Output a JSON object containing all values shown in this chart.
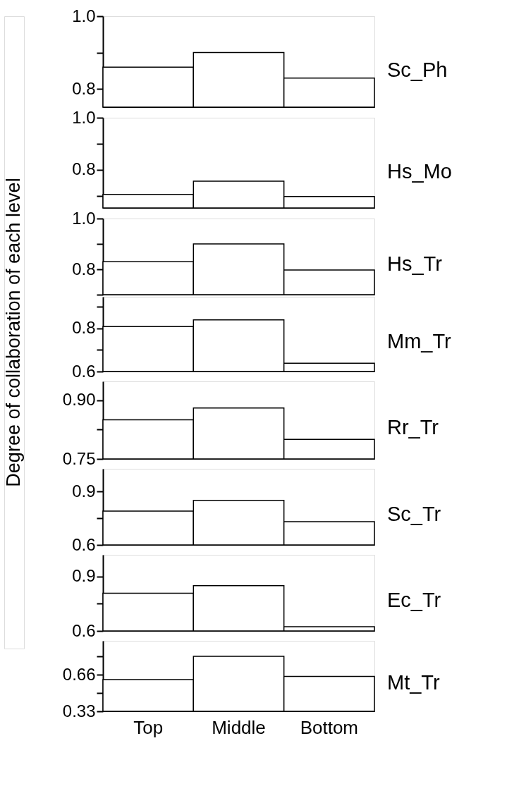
{
  "chart_data": [
    {
      "type": "bar",
      "categories": [
        null,
        null,
        null
      ],
      "series": [
        {
          "name": "Sc_Ph",
          "color": "#ffffff",
          "values": [
            0.86,
            0.9,
            0.83
          ]
        }
      ],
      "ylim": [
        0.75,
        1.0
      ],
      "yticks": [
        0.8,
        {
          "value": 0.9,
          "label": null
        },
        {
          "value": 1.0,
          "label": "1.0"
        }
      ],
      "tick_labels": "y",
      "grid": false
    },
    {
      "type": "bar",
      "categories": [
        null,
        null,
        null
      ],
      "series": [
        {
          "name": "Hs_Mo",
          "color": "#ffffff",
          "values": [
            0.706,
            0.757,
            0.698
          ]
        }
      ],
      "ylim": [
        0.654,
        1.0
      ],
      "yticks": [
        {
          "value": 0.7,
          "label": null
        },
        0.8,
        {
          "value": 0.9,
          "label": null
        },
        {
          "value": 1.0,
          "label": "1.0"
        }
      ],
      "tick_labels": "y",
      "grid": false
    },
    {
      "type": "bar",
      "categories": [
        null,
        null,
        null
      ],
      "series": [
        {
          "name": "Hs_Tr",
          "color": "#ffffff",
          "values": [
            0.83,
            0.9,
            0.797
          ]
        }
      ],
      "ylim": [
        0.7,
        1.0
      ],
      "yticks": [
        {
          "value": 0.7,
          "label": null
        },
        0.8,
        {
          "value": 0.9,
          "label": null
        },
        {
          "value": 1.0,
          "label": "1.0"
        }
      ],
      "tick_labels": "y",
      "grid": false
    },
    {
      "type": "bar",
      "ylabel": "Degree of collaboration of each level",
      "categories": [
        null,
        null,
        null
      ],
      "series": [
        {
          "name": "Mm_Tr",
          "color": "#ffffff",
          "values": [
            0.808,
            0.839,
            0.638
          ]
        }
      ],
      "ylim": [
        0.6,
        0.946
      ],
      "yticks": [
        0.6,
        {
          "value": 0.7,
          "label": null
        },
        0.8,
        {
          "value": 0.9,
          "label": null
        }
      ],
      "tick_labels": "y",
      "grid": false
    },
    {
      "type": "bar",
      "categories": [
        null,
        null,
        null
      ],
      "series": [
        {
          "name": "Rr_Tr",
          "color": "#ffffff",
          "values": [
            0.85,
            0.88,
            0.8
          ]
        }
      ],
      "ylim": [
        0.75,
        0.948
      ],
      "yticks": [
        {
          "value": 0.75,
          "label": "0.75"
        },
        {
          "value": 0.825,
          "label": null
        },
        {
          "value": 0.9,
          "label": "0.90"
        }
      ],
      "tick_labels": "y",
      "grid": false
    },
    {
      "type": "bar",
      "categories": [
        null,
        null,
        null
      ],
      "series": [
        {
          "name": "Sc_Tr",
          "color": "#ffffff",
          "values": [
            0.79,
            0.85,
            0.73
          ]
        }
      ],
      "ylim": [
        0.6,
        1.027
      ],
      "yticks": [
        0.6,
        {
          "value": 0.75,
          "label": null
        },
        0.9
      ],
      "tick_labels": "y",
      "grid": false
    },
    {
      "type": "bar",
      "categories": [
        null,
        null,
        null
      ],
      "series": [
        {
          "name": "Ec_Tr",
          "color": "#ffffff",
          "values": [
            0.808,
            0.85,
            0.623
          ]
        }
      ],
      "ylim": [
        0.6,
        1.02
      ],
      "yticks": [
        0.6,
        {
          "value": 0.75,
          "label": null
        },
        0.9
      ],
      "tick_labels": "y",
      "grid": false
    },
    {
      "type": "bar",
      "categories": [
        "Top",
        "Middle",
        "Bottom"
      ],
      "series": [
        {
          "name": "Mt_Tr",
          "color": "#ffffff",
          "values": [
            0.616,
            0.827,
            0.645
          ]
        }
      ],
      "ylim": [
        0.33,
        0.967
      ],
      "yticks": [
        0.33,
        {
          "value": 0.495,
          "label": null
        },
        0.66,
        {
          "value": 0.825,
          "label": null
        }
      ],
      "grid": false
    }
  ]
}
